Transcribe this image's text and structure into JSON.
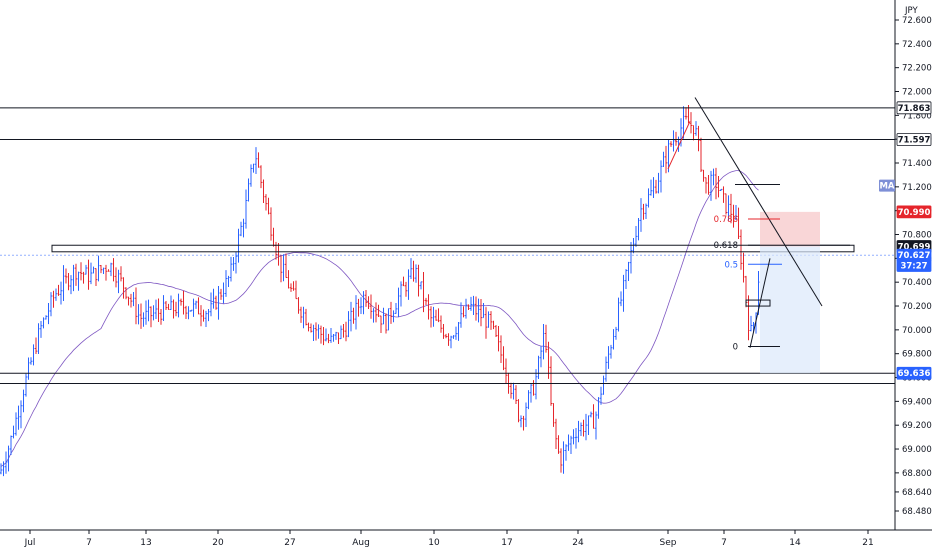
{
  "chart_data": {
    "type": "candlestick",
    "instrument_currency": "JPY",
    "x_ticks": [
      "Jul",
      "7",
      "13",
      "20",
      "27",
      "Aug",
      "10",
      "17",
      "24",
      "Sep",
      "7",
      "14",
      "21"
    ],
    "y_ticks": [
      "72.600",
      "72.400",
      "72.200",
      "72.000",
      "71.800",
      "71.600",
      "71.400",
      "71.200",
      "71.000",
      "70.800",
      "70.600",
      "70.400",
      "70.200",
      "70.000",
      "69.800",
      "69.600",
      "69.400",
      "69.200",
      "69.000",
      "68.800",
      "68.640",
      "68.480"
    ],
    "ylim": [
      68.4,
      72.72
    ],
    "grid": false,
    "price_tags": [
      {
        "value": "71.863",
        "color": "#ffffff",
        "text_color": "#131722",
        "border": "#131722"
      },
      {
        "value": "71.597",
        "color": "#ffffff",
        "text_color": "#131722",
        "border": "#131722"
      },
      {
        "value": "70.990",
        "color": "#e5252b",
        "text_color": "#ffffff",
        "border": "#e5252b"
      },
      {
        "value": "70.699",
        "color": "#131722",
        "text_color": "#ffffff",
        "border": "#131722"
      },
      {
        "value": "70.627",
        "color": "#2962ff",
        "text_color": "#ffffff",
        "border": "#2962ff"
      },
      {
        "value": "37:27",
        "color": "#2962ff",
        "text_color": "#ffffff",
        "border": "#2962ff"
      },
      {
        "value": "69.636",
        "color": "#2962ff",
        "text_color": "#ffffff",
        "border": "#2962ff"
      }
    ],
    "ma_label": "MA",
    "horizontal_lines": [
      71.863,
      71.597,
      69.636,
      69.55
    ],
    "zone": {
      "top": 70.71,
      "bottom": 70.655
    },
    "fib_levels": [
      {
        "label": "0.786",
        "value": 70.93,
        "color": "#e5252b"
      },
      {
        "label": "0.618",
        "value": 70.71,
        "color": "#131722"
      },
      {
        "label": "0.5",
        "value": 70.55,
        "color": "#2962ff"
      },
      {
        "label": "0",
        "value": 69.86,
        "color": "#131722"
      }
    ],
    "position": {
      "stop_top": 70.99,
      "entry": 70.7,
      "target_bottom": 69.636
    },
    "colors": {
      "up": "#2962ff",
      "down": "#e5252b",
      "ma": "#7e57c2",
      "text": "#131722"
    }
  }
}
